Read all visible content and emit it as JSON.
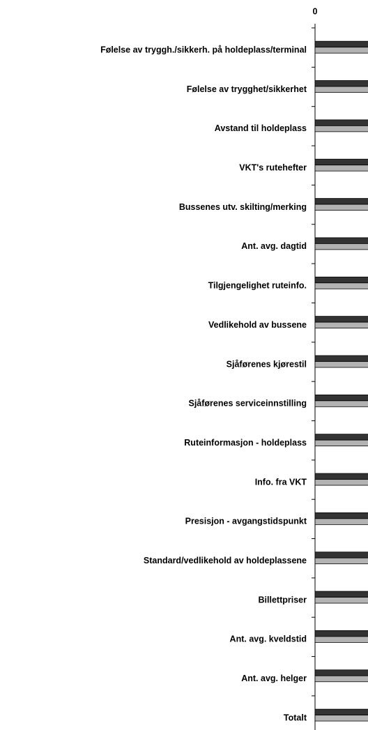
{
  "chart_data": {
    "type": "hbar",
    "categories": [
      "Følelse av tryggh./sikkerh. på holdeplass/terminal",
      "Følelse av trygghet/sikkerhet",
      "Avstand til holdeplass",
      "VKT's rutehefter",
      "Bussenes utv. skilting/merking",
      "Ant. avg. dagtid",
      "Tilgjengelighet ruteinfo.",
      "Vedlikehold av bussene",
      "Sjåførenes kjørestil",
      "Sjåførenes serviceinnstilling",
      "Ruteinformasjon - holdeplass",
      "Info. fra VKT",
      "Presisjon - avgangstidspunkt",
      "Standard/vedlikehold av holdeplassene",
      "Billettpriser",
      "Ant. avg. kveldstid",
      "Ant. avg. helger",
      "Totalt"
    ],
    "series": [
      {
        "color": "#333333",
        "values": [
          5,
          5,
          5,
          5,
          5,
          5,
          5,
          5,
          5,
          5,
          5,
          5,
          5,
          5,
          5,
          5,
          5,
          5
        ]
      },
      {
        "color": "#b3b3b3",
        "values": [
          5,
          5,
          5,
          5,
          5,
          5,
          5,
          5,
          5,
          5,
          5,
          5,
          5,
          5,
          5,
          5,
          5,
          5
        ]
      }
    ],
    "xlim": [
      0,
      6
    ],
    "xticks": [
      0
    ]
  }
}
